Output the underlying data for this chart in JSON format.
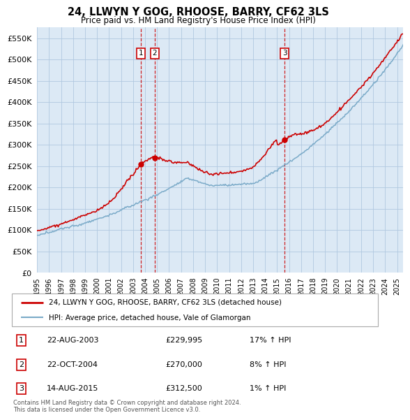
{
  "title": "24, LLWYN Y GOG, RHOOSE, BARRY, CF62 3LS",
  "subtitle": "Price paid vs. HM Land Registry's House Price Index (HPI)",
  "ylim": [
    0,
    575000
  ],
  "yticks": [
    0,
    50000,
    100000,
    150000,
    200000,
    250000,
    300000,
    350000,
    400000,
    450000,
    500000,
    550000
  ],
  "ytick_labels": [
    "£0",
    "£50K",
    "£100K",
    "£150K",
    "£200K",
    "£250K",
    "£300K",
    "£350K",
    "£400K",
    "£450K",
    "£500K",
    "£550K"
  ],
  "xlim_start": 1995,
  "xlim_end": 2025.5,
  "purchases": [
    {
      "date_num": 2003.64,
      "price": 229995,
      "label": "1"
    },
    {
      "date_num": 2004.81,
      "price": 270000,
      "label": "2"
    },
    {
      "date_num": 2015.62,
      "price": 312500,
      "label": "3"
    }
  ],
  "vlines": [
    2003.64,
    2004.81,
    2015.62
  ],
  "legend_entries": [
    {
      "label": "24, LLWYN Y GOG, RHOOSE, BARRY, CF62 3LS (detached house)",
      "color": "#cc0000",
      "lw": 2
    },
    {
      "label": "HPI: Average price, detached house, Vale of Glamorgan",
      "color": "#7aaac8",
      "lw": 1.5
    }
  ],
  "table_rows": [
    {
      "num": "1",
      "date": "22-AUG-2003",
      "price": "£229,995",
      "hpi": "17% ↑ HPI"
    },
    {
      "num": "2",
      "date": "22-OCT-2004",
      "price": "£270,000",
      "hpi": "8% ↑ HPI"
    },
    {
      "num": "3",
      "date": "14-AUG-2015",
      "price": "£312,500",
      "hpi": "1% ↑ HPI"
    }
  ],
  "footer": "Contains HM Land Registry data © Crown copyright and database right 2024.\nThis data is licensed under the Open Government Licence v3.0.",
  "bg_color": "#ffffff",
  "chart_bg_color": "#dce9f5",
  "grid_color": "#b0c8e0",
  "hpi_color": "#7aaac8",
  "price_color": "#cc0000",
  "vline_color": "#cc0000"
}
